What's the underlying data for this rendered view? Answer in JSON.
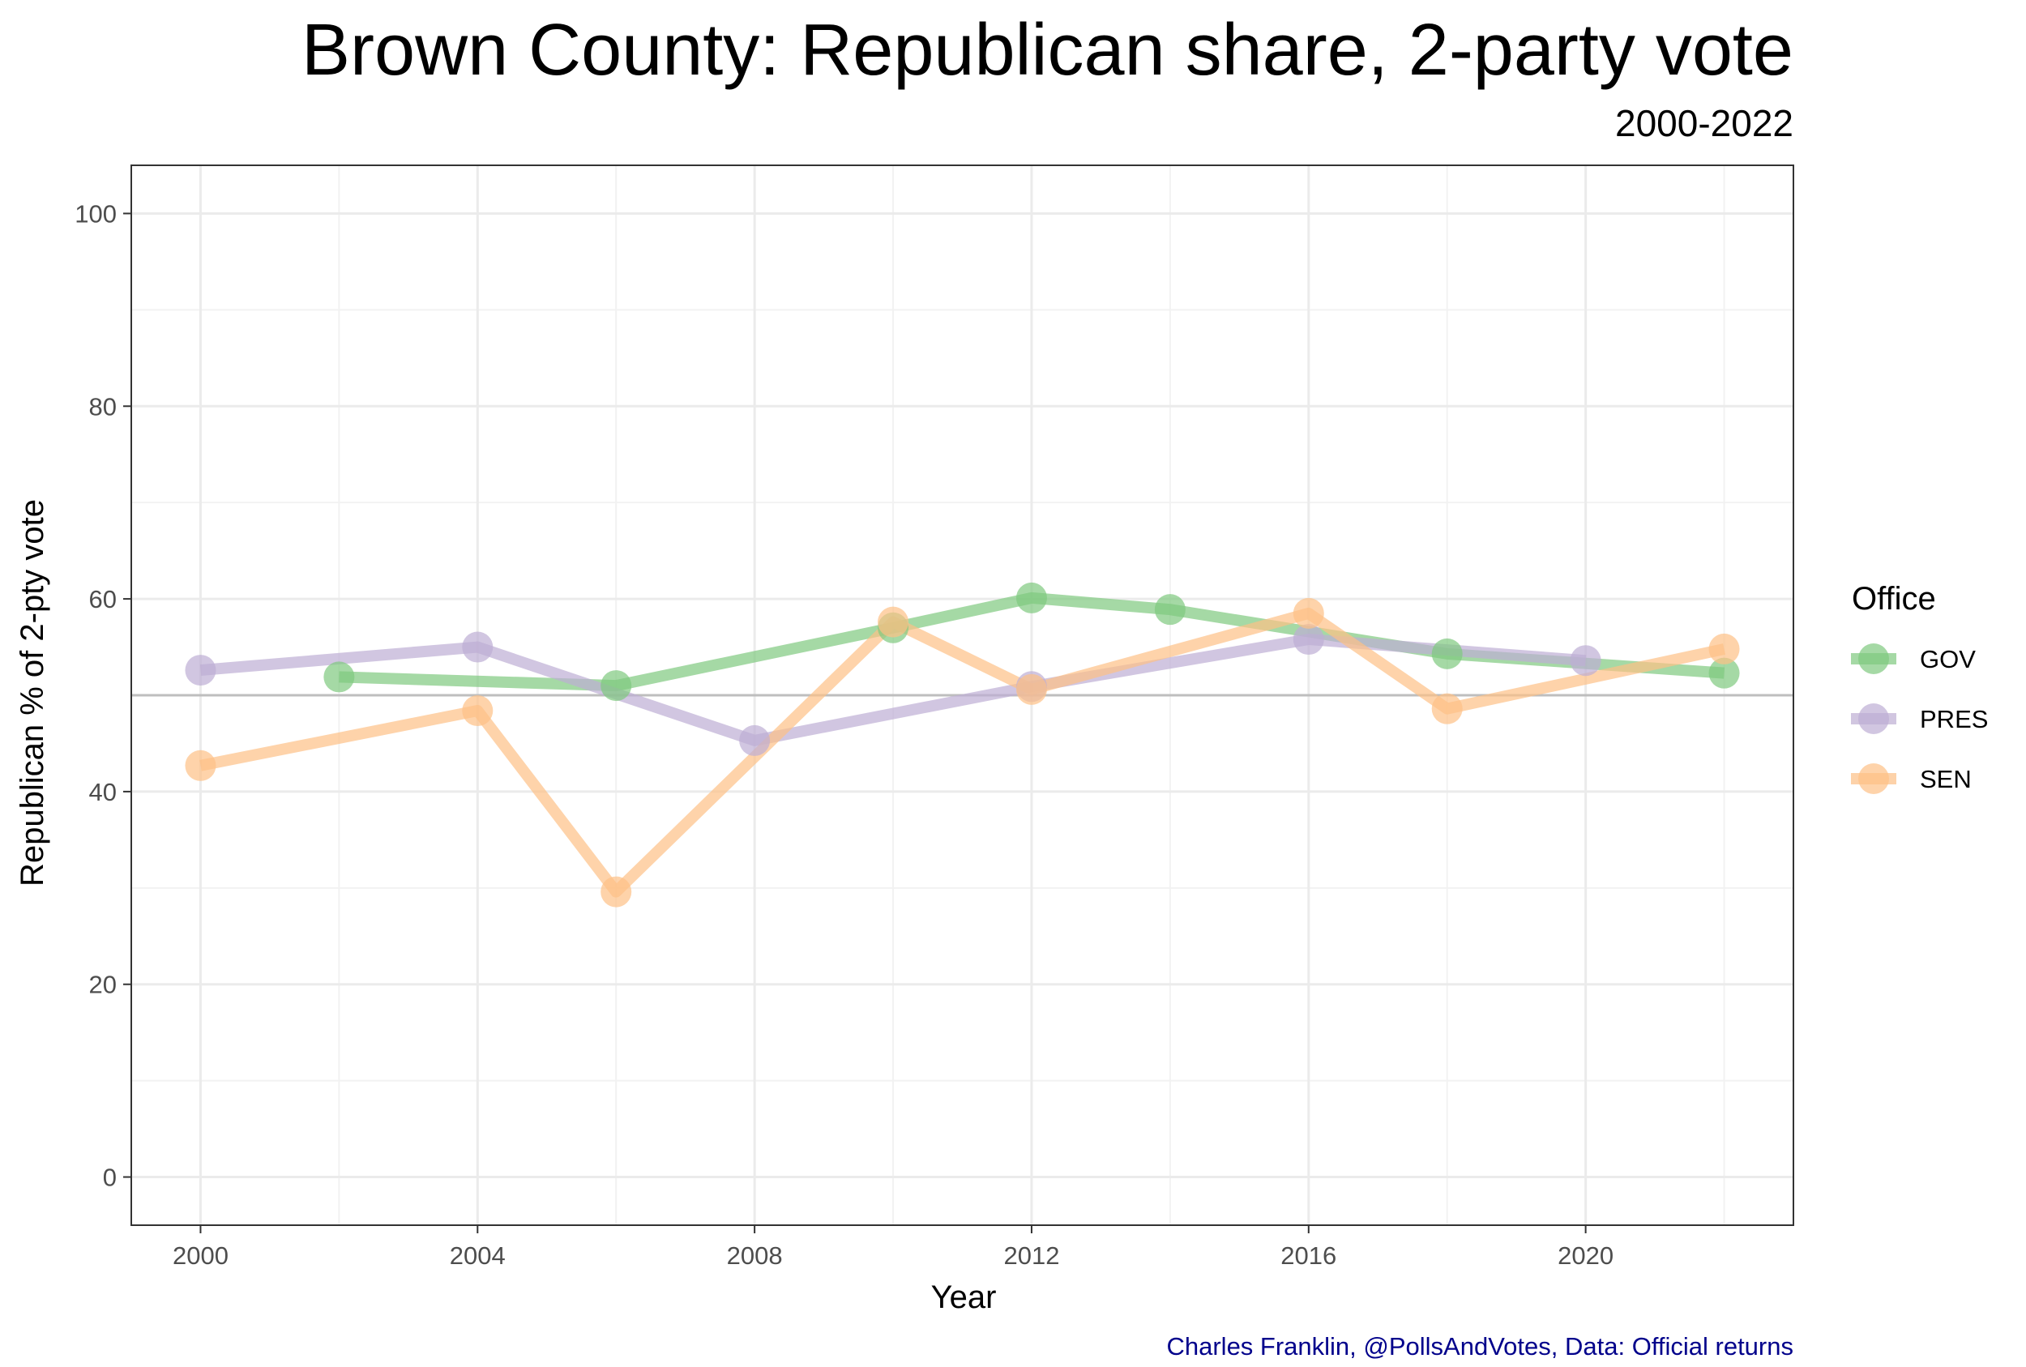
{
  "chart_data": {
    "type": "line",
    "title": "Brown County: Republican share, 2-party vote",
    "subtitle": "2000-2022",
    "xlabel": "Year",
    "ylabel": "Republican % of 2-pty vote",
    "caption": "Charles Franklin, @PollsAndVotes, Data: Official returns",
    "xlim": [
      1999,
      2023
    ],
    "ylim": [
      -5,
      105
    ],
    "x_ticks": [
      2000,
      2004,
      2008,
      2012,
      2016,
      2020
    ],
    "y_ticks": [
      0,
      20,
      40,
      60,
      80,
      100
    ],
    "reference_line": 50,
    "grid": true,
    "legend": {
      "title": "Office",
      "position": "right"
    },
    "series": [
      {
        "name": "GOV",
        "color": "#7fc97f",
        "x": [
          2002,
          2006,
          2010,
          2012,
          2014,
          2018,
          2022
        ],
        "y": [
          51.9,
          51.0,
          57.0,
          60.1,
          58.9,
          54.3,
          52.3
        ]
      },
      {
        "name": "PRES",
        "color": "#beaed4",
        "x": [
          2000,
          2004,
          2008,
          2012,
          2016,
          2020
        ],
        "y": [
          52.6,
          55.0,
          45.3,
          50.9,
          55.8,
          53.6
        ]
      },
      {
        "name": "SEN",
        "color": "#fdc086",
        "x": [
          2000,
          2004,
          2006,
          2010,
          2012,
          2016,
          2018,
          2022
        ],
        "y": [
          42.7,
          48.4,
          29.6,
          57.6,
          50.6,
          58.5,
          48.6,
          54.8
        ]
      }
    ]
  }
}
